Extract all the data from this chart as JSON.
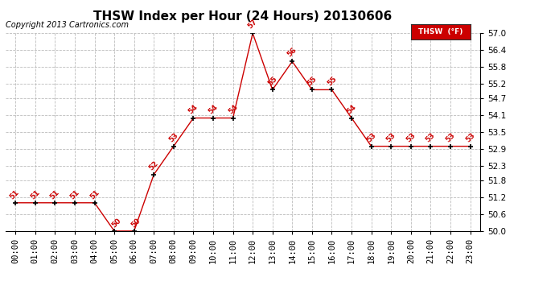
{
  "title": "THSW Index per Hour (24 Hours) 20130606",
  "copyright": "Copyright 2013 Cartronics.com",
  "legend_label": "THSW  (°F)",
  "hours": [
    0,
    1,
    2,
    3,
    4,
    5,
    6,
    7,
    8,
    9,
    10,
    11,
    12,
    13,
    14,
    15,
    16,
    17,
    18,
    19,
    20,
    21,
    22,
    23
  ],
  "values": [
    51,
    51,
    51,
    51,
    51,
    50,
    50,
    52,
    53,
    54,
    54,
    54,
    57,
    55,
    56,
    55,
    55,
    54,
    53,
    53,
    53,
    53,
    53,
    53
  ],
  "ylim": [
    50.0,
    57.0
  ],
  "yticks": [
    50.0,
    50.6,
    51.2,
    51.8,
    52.3,
    52.9,
    53.5,
    54.1,
    54.7,
    55.2,
    55.8,
    56.4,
    57.0
  ],
  "line_color": "#cc0000",
  "marker_color": "#000000",
  "bg_color": "#ffffff",
  "grid_color": "#bbbbbb",
  "label_color": "#cc0000",
  "legend_bg": "#cc0000",
  "legend_text_color": "#ffffff",
  "title_fontsize": 11,
  "copyright_fontsize": 7,
  "tick_label_fontsize": 7.5,
  "value_label_fontsize": 6.5
}
